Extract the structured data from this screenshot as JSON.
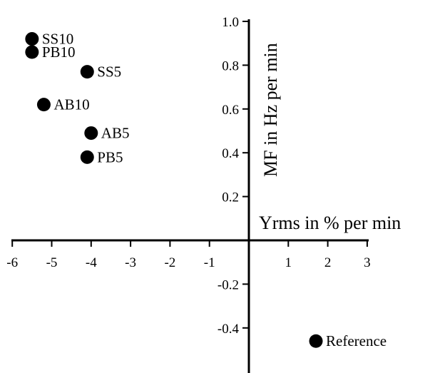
{
  "chart_data": {
    "type": "scatter",
    "title": "",
    "xlabel": "Yrms in % per min",
    "ylabel": "MF in Hz per min",
    "xlim": [
      -6,
      3
    ],
    "ylim": [
      -0.6,
      1.0
    ],
    "x_ticks": [
      "-6",
      "-5",
      "-4",
      "-3",
      "-2",
      "-1",
      "1",
      "2",
      "3"
    ],
    "y_ticks": [
      "1.0",
      "0.8",
      "0.6",
      "0.4",
      "0.2",
      "-0.2",
      "-0.4"
    ],
    "grid": false,
    "color": "#000000",
    "points": [
      {
        "label": "SS10",
        "x": -5.5,
        "y": 0.92
      },
      {
        "label": "PB10",
        "x": -5.5,
        "y": 0.86
      },
      {
        "label": "SS5",
        "x": -4.1,
        "y": 0.77
      },
      {
        "label": "AB10",
        "x": -5.2,
        "y": 0.62
      },
      {
        "label": "AB5",
        "x": -4.0,
        "y": 0.49
      },
      {
        "label": "PB5",
        "x": -4.1,
        "y": 0.38
      },
      {
        "label": "Reference",
        "x": 1.7,
        "y": -0.46
      }
    ]
  }
}
